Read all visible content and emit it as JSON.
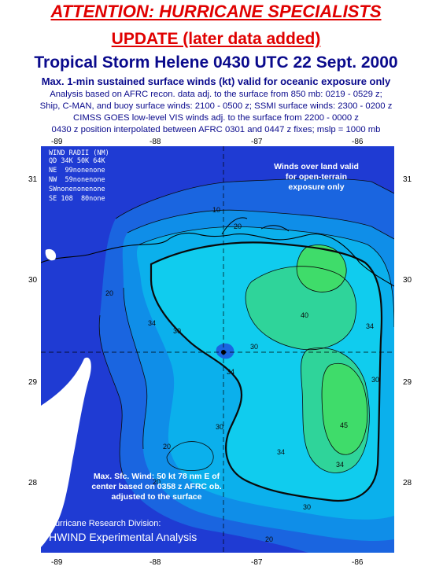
{
  "header": {
    "attention": "ATTENTION: HURRICANE SPECIALISTS",
    "update": "UPDATE (later data added)",
    "title": "Tropical Storm Helene 0430 UTC 22 Sept. 2000",
    "subtitle": "Max. 1-min sustained surface winds (kt) valid for oceanic exposure only",
    "notes": [
      "Analysis based on AFRC recon. data adj. to the surface from 850 mb: 0219 - 0529 z;",
      "Ship, C-MAN, and buoy surface winds: 2100 - 0500 z; SSMI surface winds: 2300 - 0200 z",
      "CIMSS GOES low-level VIS winds adj. to the surface from 2200 - 0000 z",
      "0430 z position interpolated between AFRC 0301 and 0447 z fixes; mslp = 1000 mb"
    ]
  },
  "axes": {
    "longitude_ticks": [
      "-89",
      "-88",
      "-87",
      "-86"
    ],
    "latitude_ticks": [
      "31",
      "30",
      "29",
      "28"
    ]
  },
  "wind_radii": {
    "title": "WIND RADII (NM)",
    "columns": "QD 34K 50K 64K",
    "rows": [
      "NE  99nonenone",
      "NW  59nonenone",
      "SWnonenonenone",
      "SE 108  80none"
    ]
  },
  "annotations": {
    "land": "Winds over land valid for open-terrain exposure only",
    "max_wind": "Max. Sfc. Wind: 50 kt 78 nm E of center based on 0358 z AFRC ob. adjusted to the surface"
  },
  "contour_labels": [
    "34",
    "30",
    "20",
    "10",
    "34",
    "34",
    "30",
    "40",
    "30",
    "45",
    "34",
    "34",
    "30",
    "20",
    "20",
    "20",
    "30",
    "20"
  ],
  "credits": {
    "line1": "Hurricane Research Division:",
    "line2": "HWIND Experimental Analysis"
  },
  "colors": {
    "header_red": "#e00000",
    "header_navy": "#0a0a8c",
    "low_wind_blue": "#1f3bd3",
    "mid_wind_cyan": "#0fc2ee",
    "high_wind_green": "#2fd49a",
    "peak_wind_green": "#3fdc6a"
  }
}
